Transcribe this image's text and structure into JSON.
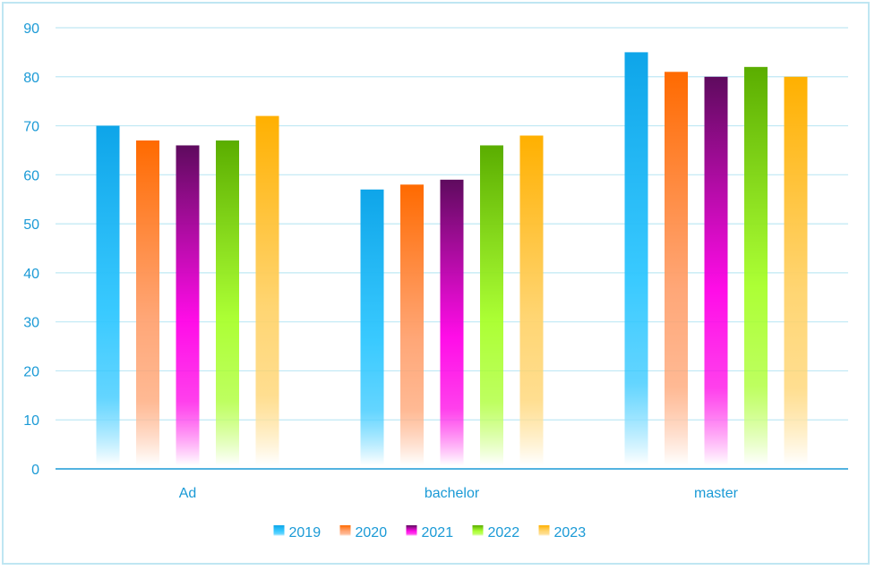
{
  "chart_data": {
    "type": "bar",
    "categories": [
      "Ad",
      "bachelor",
      "master"
    ],
    "series": [
      {
        "name": "2019",
        "values": [
          70,
          57,
          85
        ],
        "color": "#0ea5e9"
      },
      {
        "name": "2020",
        "values": [
          67,
          58,
          81
        ],
        "color": "#ff6a00"
      },
      {
        "name": "2021",
        "values": [
          66,
          59,
          80
        ],
        "color": "#5e0b5e"
      },
      {
        "name": "2022",
        "values": [
          67,
          66,
          82
        ],
        "color": "#5aad00"
      },
      {
        "name": "2023",
        "values": [
          72,
          68,
          80
        ],
        "color": "#ffb000"
      }
    ],
    "series_bottom_colors": {
      "2019": "#2fc7ff",
      "2020": "#ffa270",
      "2021": "#ff00e6",
      "2022": "#a8ff2a",
      "2023": "#ffd36b"
    },
    "ylim": [
      0,
      90
    ],
    "yticks": [
      0,
      10,
      20,
      30,
      40,
      50,
      60,
      70,
      80,
      90
    ],
    "grid": true,
    "legend_position": "bottom",
    "axis_color": "#1a9ad6",
    "gridline_color": "#bfe8f4"
  }
}
